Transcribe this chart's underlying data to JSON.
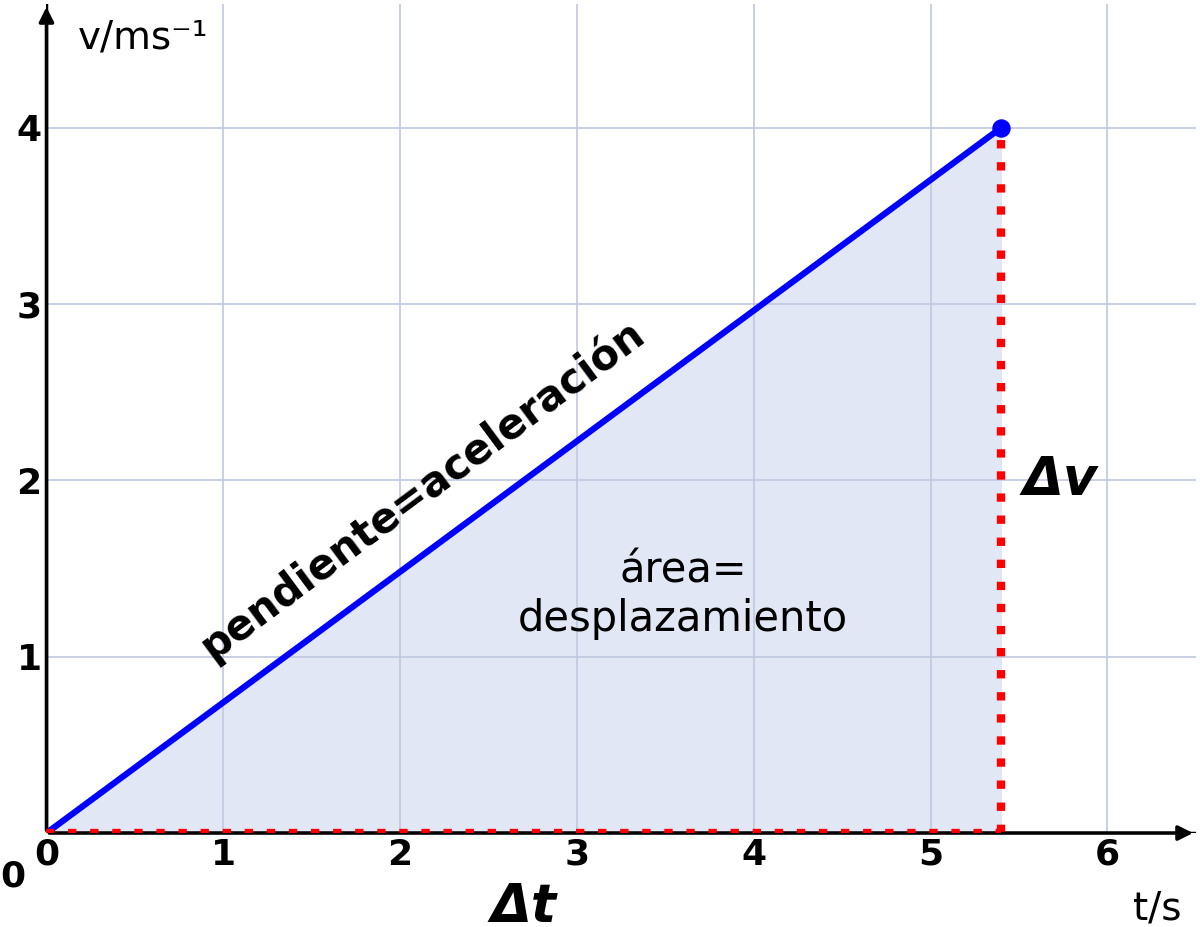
{
  "title": "",
  "ylabel": "v/ms⁻¹",
  "xlabel": "t/s",
  "xlim": [
    0,
    6.5
  ],
  "ylim": [
    0,
    4.7
  ],
  "xticks": [
    0,
    1,
    2,
    3,
    4,
    5,
    6
  ],
  "yticks": [
    0,
    1,
    2,
    3,
    4
  ],
  "line_x": [
    0,
    5.4
  ],
  "line_y": [
    0,
    4.0
  ],
  "line_color": "#0000ff",
  "line_width": 4.5,
  "fill_color": "#dde3f5",
  "fill_alpha": 0.85,
  "dot_color": "#ff0000",
  "dot_end_x": 5.4,
  "dot_end_y": 4.0,
  "dot_linewidth": 6,
  "label_slope": "pendiente=aceleración",
  "label_area": "área=\ndesplazamiento",
  "label_dv": "Δv",
  "label_dt": "Δt",
  "bg_color": "#ffffff",
  "grid_color": "#c0c8e0",
  "endpoint_color": "#0000ff",
  "endpoint_size": 150,
  "font_size_axis": 28,
  "font_size_ticks": 26,
  "font_size_labels": 30,
  "font_size_delta": 38
}
